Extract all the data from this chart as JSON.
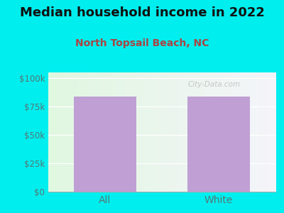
{
  "title": "Median household income in 2022",
  "subtitle": "North Topsail Beach, NC",
  "categories": [
    "All",
    "White"
  ],
  "values": [
    83500,
    84000
  ],
  "bar_color": "#bf9fd4",
  "background_outer": "#00EEEE",
  "title_fontsize": 13,
  "subtitle_fontsize": 10,
  "title_color": "#111111",
  "subtitle_color": "#aa4444",
  "tick_label_color": "#557777",
  "yticks": [
    0,
    25000,
    50000,
    75000,
    100000
  ],
  "ytick_labels": [
    "$0",
    "$25k",
    "$50k",
    "$75k",
    "$100k"
  ],
  "ylim": [
    0,
    105000
  ],
  "xlim": [
    -0.5,
    1.5
  ],
  "watermark": "City-Data.com"
}
